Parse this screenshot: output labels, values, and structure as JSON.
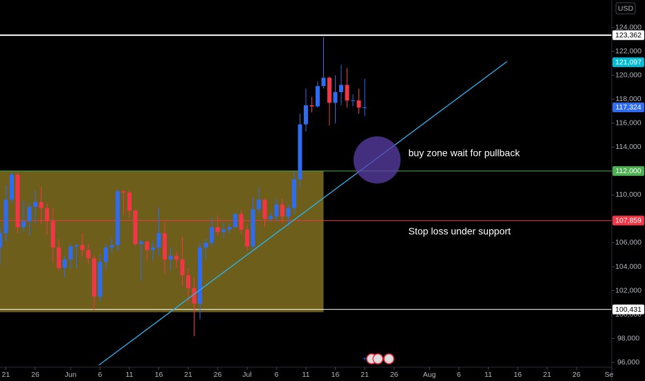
{
  "chart_data": {
    "type": "candlestick",
    "currency": "USD",
    "up_color": "#2f6cf0",
    "down_color": "#f23645",
    "x": [
      -1,
      0,
      1,
      2,
      3,
      4,
      5,
      6,
      7,
      8,
      9,
      10,
      11,
      12,
      13,
      14,
      15,
      16,
      17,
      18,
      19,
      20,
      21,
      22,
      23,
      24,
      25,
      26,
      27,
      28,
      29,
      30,
      31,
      32,
      33,
      34,
      35,
      36,
      37,
      38,
      39,
      40,
      41,
      42,
      43,
      44,
      45,
      46,
      47,
      48,
      49,
      50,
      51,
      52,
      53,
      54,
      55,
      56,
      57,
      58,
      59,
      60,
      61
    ],
    "open": [
      105600,
      106800,
      109600,
      111700,
      107300,
      107800,
      109000,
      109400,
      108900,
      107800,
      105600,
      103900,
      104600,
      105700,
      105800,
      105400,
      104700,
      101500,
      104400,
      105600,
      105800,
      110300,
      110200,
      108700,
      105900,
      106100,
      105400,
      105600,
      106800,
      104600,
      104900,
      104600,
      103300,
      102200,
      100900,
      105600,
      106000,
      107300,
      106900,
      107100,
      107300,
      108400,
      107100,
      105700,
      108800,
      109600,
      108000,
      108200,
      109200,
      108200,
      108900,
      111300,
      115900,
      117500,
      117400,
      119100,
      119800,
      117700,
      118600,
      119200,
      117900,
      117900,
      117300
    ],
    "high": [
      107300,
      110800,
      112000,
      111900,
      109500,
      109300,
      110400,
      110700,
      109300,
      108900,
      106300,
      104900,
      105900,
      105900,
      106800,
      105900,
      105000,
      105000,
      105900,
      106400,
      110500,
      110400,
      110400,
      108800,
      106200,
      106200,
      106100,
      108900,
      107700,
      105600,
      105300,
      106500,
      103900,
      103100,
      106000,
      106300,
      108100,
      108300,
      107700,
      107600,
      108500,
      108800,
      107500,
      109800,
      110600,
      109700,
      108500,
      109700,
      109700,
      109200,
      111900,
      116800,
      118900,
      118200,
      119500,
      123200,
      119900,
      120000,
      120900,
      120600,
      118400,
      118900,
      119700
    ],
    "low": [
      104200,
      106100,
      109300,
      106800,
      106900,
      106600,
      107600,
      107600,
      106700,
      104300,
      103700,
      103100,
      103800,
      103900,
      104900,
      104200,
      100400,
      101100,
      103800,
      105100,
      105300,
      108300,
      108100,
      105700,
      102800,
      104500,
      104500,
      104900,
      103400,
      103700,
      103900,
      102400,
      101000,
      98200,
      99600,
      104600,
      105700,
      106600,
      106400,
      106800,
      107200,
      106700,
      105300,
      105500,
      108400,
      107300,
      107800,
      107800,
      107600,
      107400,
      108400,
      110600,
      115300,
      116900,
      117300,
      118900,
      115800,
      116000,
      117500,
      117300,
      117400,
      116800,
      116600
    ],
    "close": [
      106800,
      109600,
      111700,
      107300,
      107800,
      109000,
      109400,
      108900,
      107800,
      105600,
      103900,
      104600,
      105700,
      105800,
      105400,
      104700,
      101500,
      104400,
      105600,
      105800,
      110300,
      110200,
      108700,
      105900,
      106100,
      105400,
      105600,
      106800,
      104600,
      104900,
      104600,
      103300,
      102200,
      100900,
      105600,
      106000,
      107300,
      106900,
      107100,
      107300,
      108400,
      107100,
      105700,
      108800,
      109600,
      108000,
      108200,
      109200,
      108200,
      108900,
      111300,
      115900,
      117500,
      117400,
      119100,
      119800,
      117700,
      118600,
      119200,
      117900,
      117900,
      117300,
      117324
    ],
    "xlim": [
      -1,
      103
    ],
    "ylim": [
      95600,
      126300
    ],
    "xticks": [
      {
        "value": 0,
        "label": "21"
      },
      {
        "value": 5,
        "label": "26"
      },
      {
        "value": 11,
        "label": "Jun"
      },
      {
        "value": 16,
        "label": "6"
      },
      {
        "value": 21,
        "label": "11"
      },
      {
        "value": 26,
        "label": "16"
      },
      {
        "value": 31,
        "label": "21"
      },
      {
        "value": 36,
        "label": "26"
      },
      {
        "value": 41,
        "label": "Jul"
      },
      {
        "value": 46,
        "label": "6"
      },
      {
        "value": 51,
        "label": "11"
      },
      {
        "value": 56,
        "label": "16"
      },
      {
        "value": 61,
        "label": "21"
      },
      {
        "value": 66,
        "label": "26"
      },
      {
        "value": 72,
        "label": "Aug"
      },
      {
        "value": 77,
        "label": "6"
      },
      {
        "value": 82,
        "label": "11"
      },
      {
        "value": 87,
        "label": "16"
      },
      {
        "value": 92,
        "label": "21"
      },
      {
        "value": 97,
        "label": "26"
      },
      {
        "value": 103,
        "label": "Se"
      }
    ],
    "yticks": [
      {
        "value": 96000,
        "label": "96,000"
      },
      {
        "value": 98000,
        "label": "98,000"
      },
      {
        "value": 100000,
        "label": "100,000"
      },
      {
        "value": 102000,
        "label": "102,000"
      },
      {
        "value": 104000,
        "label": "104,000"
      },
      {
        "value": 106000,
        "label": "106,000"
      },
      {
        "value": 108000,
        "label": "108,000"
      },
      {
        "value": 110000,
        "label": "110,000"
      },
      {
        "value": 112000,
        "label": "112,000"
      },
      {
        "value": 114000,
        "label": "114,000"
      },
      {
        "value": 116000,
        "label": "116,000"
      },
      {
        "value": 118000,
        "label": "118,000"
      },
      {
        "value": 120000,
        "label": "120,000"
      },
      {
        "value": 122000,
        "label": "122,000"
      },
      {
        "value": 124000,
        "label": "124,000"
      }
    ],
    "levels": [
      {
        "value": 123362,
        "label": "123,362",
        "color": "#ffffff",
        "text_color": "#000000",
        "line": true
      },
      {
        "value": 121097,
        "label": "121,097",
        "color": "#00bcd4",
        "text_color": "#ffffff",
        "line": false
      },
      {
        "value": 117324,
        "label": "117,324",
        "color": "#2f6cf0",
        "text_color": "#ffffff",
        "line": false
      },
      {
        "value": 112000,
        "label": "112,000",
        "color": "#4caf50",
        "text_color": "#ffffff",
        "line": true
      },
      {
        "value": 107859,
        "label": "107,859",
        "color": "#f23645",
        "text_color": "#ffffff",
        "line": true
      },
      {
        "value": 100431,
        "label": "100,431",
        "color": "#ffffff",
        "text_color": "#000000",
        "line": true
      }
    ],
    "zone": {
      "x": [
        -1,
        54
      ],
      "y": [
        100200,
        112000
      ],
      "color": "#807020"
    },
    "trendline": {
      "x": [
        15.8,
        85.2
      ],
      "y": [
        95768,
        121159
      ],
      "color": "#29b6f6"
    },
    "circle": {
      "x": 63.1,
      "y": 112928,
      "color": "#5b3fa8"
    },
    "annotations": [
      "buy zone wait for pullback",
      "Stop loss under support"
    ]
  }
}
